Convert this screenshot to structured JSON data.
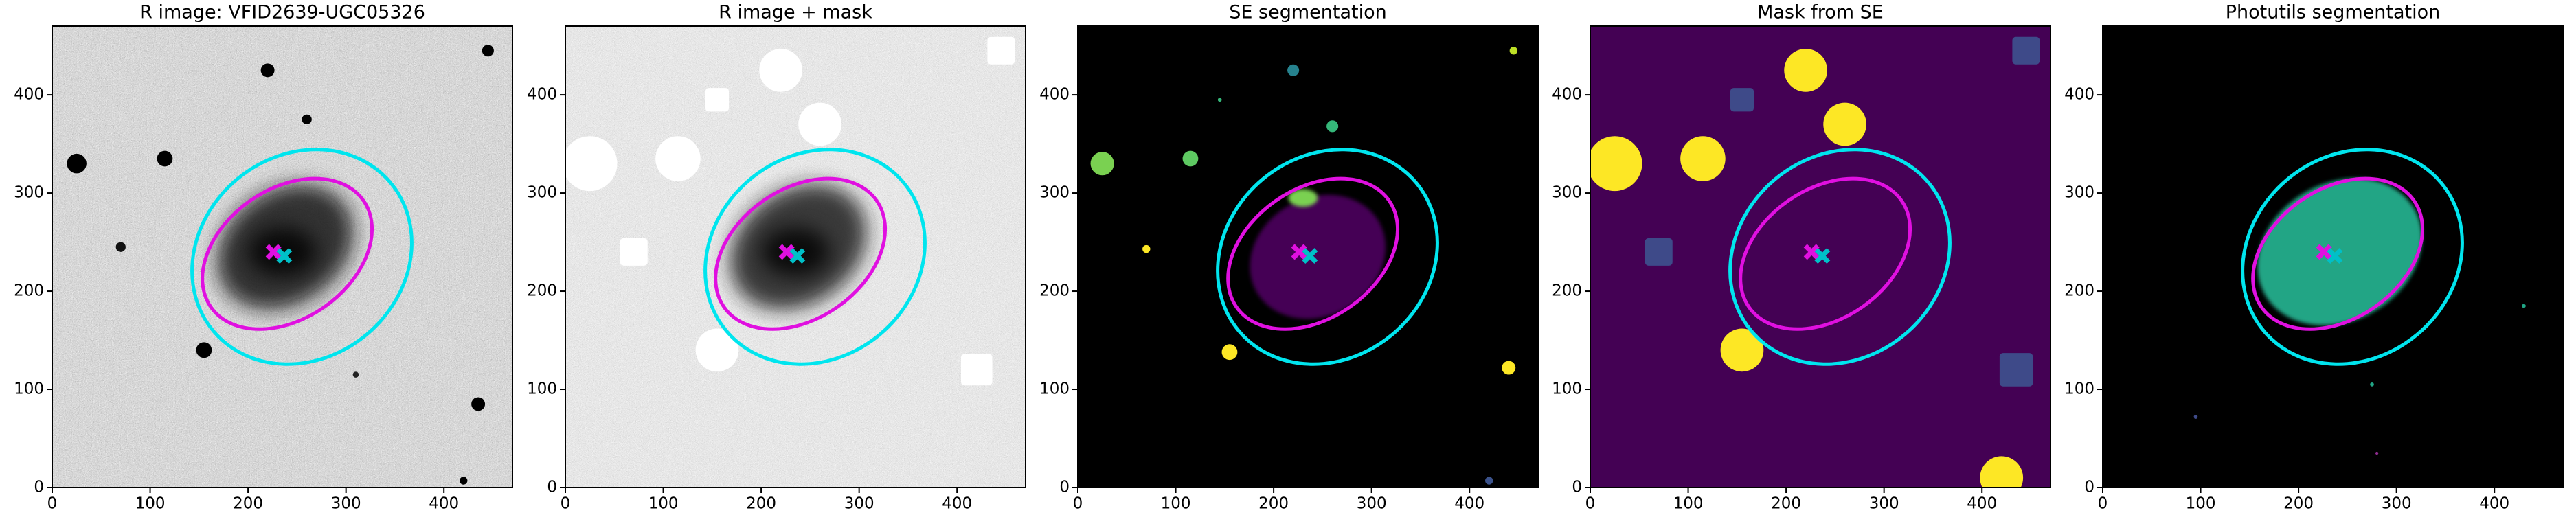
{
  "chart_data": [
    {
      "type": "image",
      "title": "R image: VFID2639-UGC05326",
      "xlim": [
        0,
        470
      ],
      "ylim": [
        0,
        470
      ],
      "xticks": [
        0,
        100,
        200,
        300,
        400
      ],
      "yticks": [
        0,
        100,
        200,
        300,
        400
      ],
      "ellipses": [
        {
          "cx": 255,
          "cy": 235,
          "rx": 118,
          "ry": 103,
          "angle": 40,
          "color": "#00e5ee"
        },
        {
          "cx": 240,
          "cy": 238,
          "rx": 95,
          "ry": 66,
          "angle": 35,
          "color": "#e010e0"
        }
      ],
      "markers": [
        {
          "x": 226,
          "y": 240,
          "color": "#e010e0"
        },
        {
          "x": 237,
          "y": 236,
          "color": "#00c0c8"
        }
      ]
    },
    {
      "type": "image",
      "title": "R image + mask",
      "xlim": [
        0,
        470
      ],
      "ylim": [
        0,
        470
      ],
      "xticks": [
        0,
        100,
        200,
        300,
        400
      ],
      "yticks": [
        0,
        100,
        200,
        300,
        400
      ],
      "ellipses": [
        {
          "cx": 255,
          "cy": 235,
          "rx": 118,
          "ry": 103,
          "angle": 40,
          "color": "#00e5ee"
        },
        {
          "cx": 240,
          "cy": 238,
          "rx": 95,
          "ry": 66,
          "angle": 35,
          "color": "#e010e0"
        }
      ],
      "markers": [
        {
          "x": 226,
          "y": 240,
          "color": "#e010e0"
        },
        {
          "x": 237,
          "y": 236,
          "color": "#00c0c8"
        }
      ]
    },
    {
      "type": "image",
      "title": "SE segmentation",
      "xlim": [
        0,
        470
      ],
      "ylim": [
        0,
        470
      ],
      "xticks": [
        0,
        100,
        200,
        300,
        400
      ],
      "yticks": [
        0,
        100,
        200,
        300,
        400
      ],
      "ellipses": [
        {
          "cx": 255,
          "cy": 235,
          "rx": 118,
          "ry": 103,
          "angle": 40,
          "color": "#00e5ee"
        },
        {
          "cx": 240,
          "cy": 238,
          "rx": 95,
          "ry": 66,
          "angle": 35,
          "color": "#e010e0"
        }
      ],
      "markers": [
        {
          "x": 226,
          "y": 240,
          "color": "#e010e0"
        },
        {
          "x": 237,
          "y": 236,
          "color": "#00c0c8"
        }
      ]
    },
    {
      "type": "image",
      "title": "Mask from SE",
      "xlim": [
        0,
        470
      ],
      "ylim": [
        0,
        470
      ],
      "xticks": [
        0,
        100,
        200,
        300,
        400
      ],
      "yticks": [
        0,
        100,
        200,
        300,
        400
      ],
      "ellipses": [
        {
          "cx": 255,
          "cy": 235,
          "rx": 118,
          "ry": 103,
          "angle": 40,
          "color": "#00e5ee"
        },
        {
          "cx": 240,
          "cy": 238,
          "rx": 95,
          "ry": 66,
          "angle": 35,
          "color": "#e010e0"
        }
      ],
      "markers": [
        {
          "x": 226,
          "y": 240,
          "color": "#e010e0"
        },
        {
          "x": 237,
          "y": 236,
          "color": "#00c0c8"
        }
      ]
    },
    {
      "type": "image",
      "title": "Photutils segmentation",
      "xlim": [
        0,
        470
      ],
      "ylim": [
        0,
        470
      ],
      "xticks": [
        0,
        100,
        200,
        300,
        400
      ],
      "yticks": [
        0,
        100,
        200,
        300,
        400
      ],
      "ellipses": [
        {
          "cx": 255,
          "cy": 235,
          "rx": 118,
          "ry": 103,
          "angle": 40,
          "color": "#00e5ee"
        },
        {
          "cx": 240,
          "cy": 238,
          "rx": 95,
          "ry": 66,
          "angle": 35,
          "color": "#e010e0"
        }
      ],
      "markers": [
        {
          "x": 226,
          "y": 240,
          "color": "#e010e0"
        },
        {
          "x": 237,
          "y": 236,
          "color": "#00c0c8"
        }
      ]
    }
  ]
}
